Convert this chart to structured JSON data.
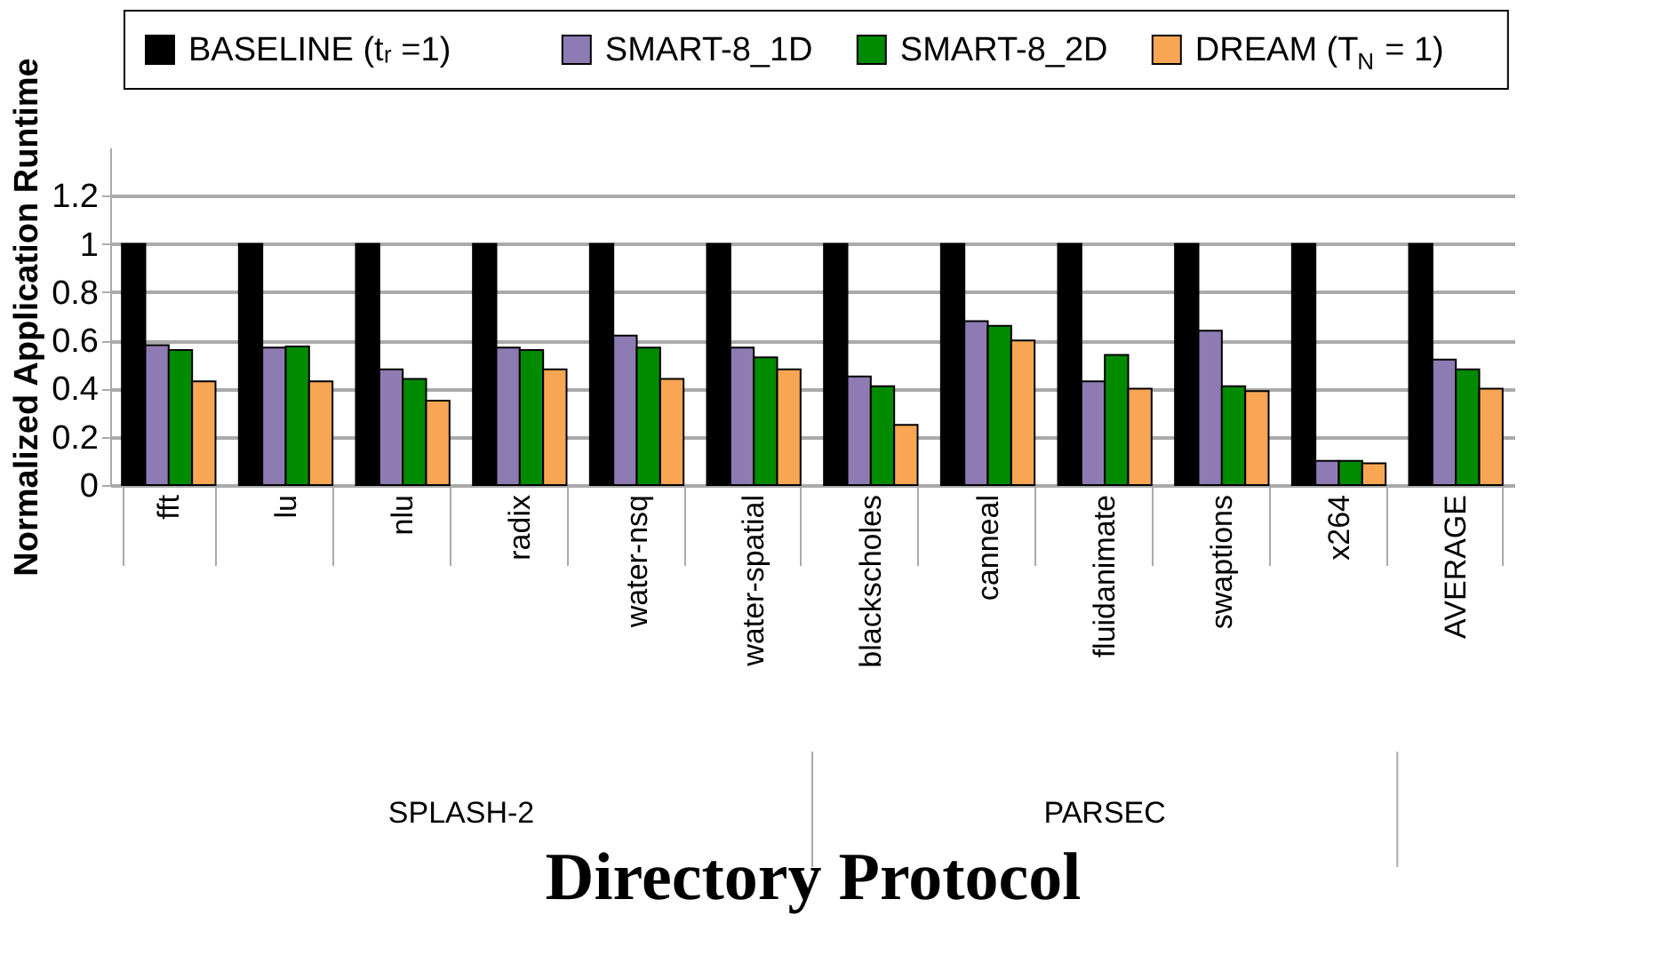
{
  "chart_data": {
    "type": "bar",
    "xlabel": "Directory Protocol",
    "ylabel": "Normalized Application Runtime",
    "categories": [
      "fft",
      "lu",
      "nlu",
      "radix",
      "water-nsq",
      "water-spatial",
      "blackscholes",
      "canneal",
      "fluidanimate",
      "swaptions",
      "x264",
      "AVERAGE"
    ],
    "series": [
      {
        "name": "BASELINE (tᵣ =1)",
        "color": "#000000",
        "values": [
          1,
          1,
          1,
          1,
          1,
          1,
          1,
          1,
          1,
          1,
          1,
          1
        ]
      },
      {
        "name": "SMART-8_1D",
        "color": "#8f7bb3",
        "values": [
          0.58,
          0.57,
          0.48,
          0.57,
          0.62,
          0.57,
          0.45,
          0.68,
          0.43,
          0.64,
          0.1,
          0.52
        ]
      },
      {
        "name": "SMART-8_2D",
        "color": "#008a00",
        "values": [
          0.56,
          0.575,
          0.44,
          0.56,
          0.57,
          0.53,
          0.41,
          0.66,
          0.54,
          0.41,
          0.1,
          0.48
        ]
      },
      {
        "name": "DREAM (T$_{N}$ = 1)",
        "color": "#f9a654",
        "values": [
          0.43,
          0.43,
          0.35,
          0.48,
          0.44,
          0.48,
          0.25,
          0.6,
          0.4,
          0.39,
          0.09,
          0.4
        ]
      }
    ],
    "annotations": [
      "SPLASH-2",
      "PARSEC"
    ],
    "ylim": [
      0,
      1.4
    ],
    "yticks": [
      0,
      0.2,
      0.4,
      0.6,
      0.8,
      1,
      1.2
    ],
    "grid": "y",
    "legend": "top"
  }
}
